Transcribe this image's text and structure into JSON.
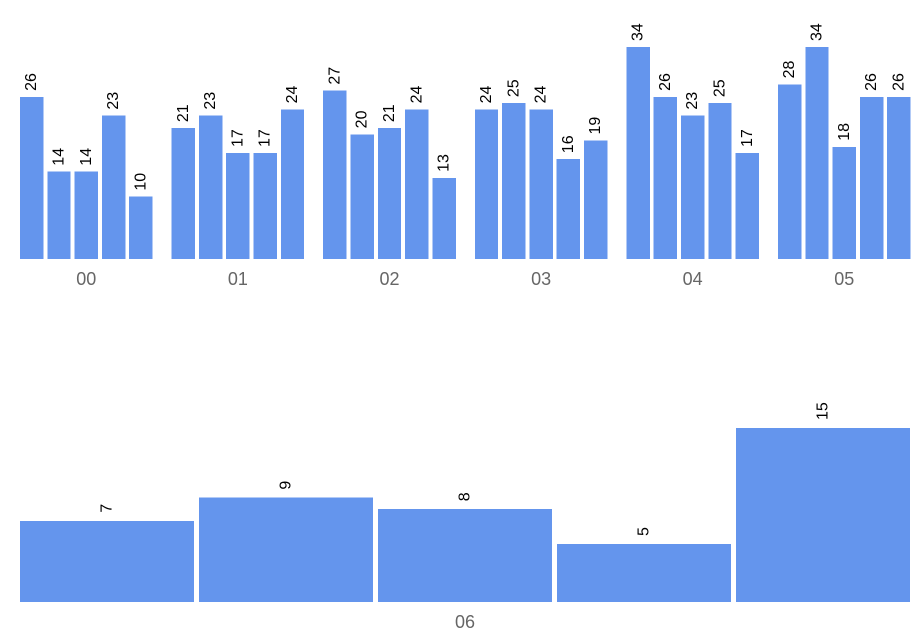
{
  "chart_data": {
    "type": "bar",
    "bar_color": "#6495ED",
    "label_color": "#000000",
    "group_label_color": "#666666",
    "top_panel": {
      "ylim": [
        0,
        34
      ],
      "groups": [
        {
          "label": "00",
          "values": [
            26,
            14,
            14,
            23,
            10
          ]
        },
        {
          "label": "01",
          "values": [
            21,
            23,
            17,
            17,
            24
          ]
        },
        {
          "label": "02",
          "values": [
            27,
            20,
            21,
            24,
            13
          ]
        },
        {
          "label": "03",
          "values": [
            24,
            25,
            24,
            16,
            19
          ]
        },
        {
          "label": "04",
          "values": [
            34,
            26,
            23,
            25,
            17
          ]
        },
        {
          "label": "05",
          "values": [
            28,
            34,
            18,
            26,
            26
          ]
        }
      ]
    },
    "bottom_panel": {
      "ylim": [
        0,
        15
      ],
      "groups": [
        {
          "label": "06",
          "values": [
            7,
            9,
            8,
            5,
            15
          ]
        }
      ]
    }
  }
}
